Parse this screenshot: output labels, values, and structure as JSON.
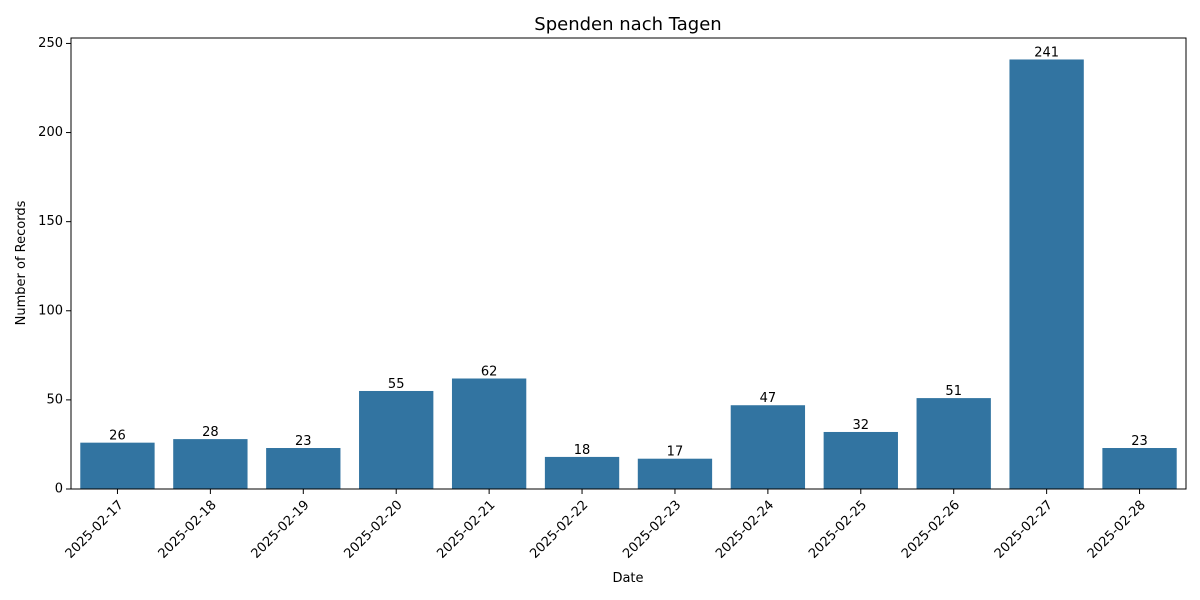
{
  "chart_data": {
    "type": "bar",
    "title": "Spenden nach Tagen",
    "xlabel": "Date",
    "ylabel": "Number of Records",
    "categories": [
      "2025-02-17",
      "2025-02-18",
      "2025-02-19",
      "2025-02-20",
      "2025-02-21",
      "2025-02-22",
      "2025-02-23",
      "2025-02-24",
      "2025-02-25",
      "2025-02-26",
      "2025-02-27",
      "2025-02-28"
    ],
    "values": [
      26,
      28,
      23,
      55,
      62,
      18,
      17,
      47,
      32,
      51,
      241,
      23
    ],
    "data_labels": [
      "26",
      "28",
      "23",
      "55",
      "62",
      "18",
      "17",
      "47",
      "32",
      "51",
      "241",
      "23"
    ],
    "yticks": [
      "0",
      "50",
      "100",
      "150",
      "200",
      "250"
    ],
    "ytick_values": [
      0,
      50,
      100,
      150,
      200,
      250
    ],
    "ylim": [
      0,
      253.05
    ],
    "grid": false,
    "legend": "none",
    "bar_color": "#3274a1",
    "x_tick_rotation": 45
  }
}
